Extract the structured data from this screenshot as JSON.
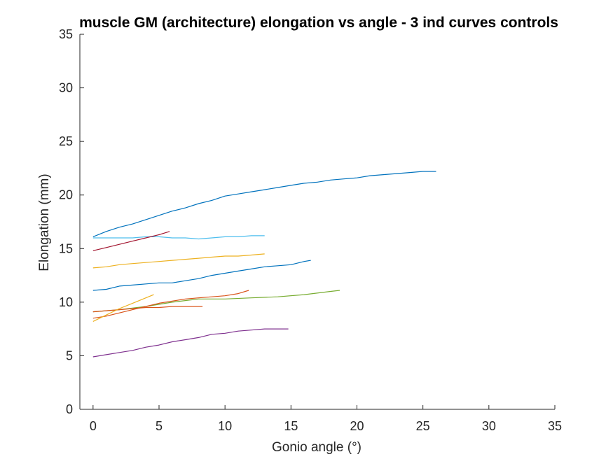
{
  "chart_data": {
    "type": "line",
    "title": "muscle GM (architecture) elongation vs angle - 3 ind curves controls",
    "xlabel": "Gonio angle (°)",
    "ylabel": "Elongation (mm)",
    "xlim": [
      -1,
      35
    ],
    "ylim": [
      0,
      35
    ],
    "xticks": [
      0,
      5,
      10,
      15,
      20,
      25,
      30,
      35
    ],
    "yticks": [
      0,
      5,
      10,
      15,
      20,
      25,
      30,
      35
    ],
    "xtick_labels": [
      "0",
      "5",
      "10",
      "15",
      "20",
      "25",
      "30",
      "35"
    ],
    "ytick_labels": [
      "0",
      "5",
      "10",
      "15",
      "20",
      "25",
      "30",
      "35"
    ],
    "grid": false,
    "series": [
      {
        "color": "#0072BD",
        "x": [
          0,
          1,
          2,
          3,
          4,
          5,
          6,
          7,
          8,
          9,
          10,
          11,
          12,
          13,
          14,
          15,
          16,
          17,
          18,
          19,
          20,
          21,
          22,
          23,
          24,
          25,
          26
        ],
        "y": [
          16.1,
          16.6,
          17.0,
          17.3,
          17.7,
          18.1,
          18.5,
          18.8,
          19.2,
          19.5,
          19.9,
          20.1,
          20.3,
          20.5,
          20.7,
          20.9,
          21.1,
          21.2,
          21.4,
          21.5,
          21.6,
          21.8,
          21.9,
          22.0,
          22.1,
          22.2,
          22.2
        ]
      },
      {
        "color": "#4DBEEE",
        "x": [
          0,
          1,
          2,
          3,
          4,
          5,
          6,
          7,
          8,
          9,
          10,
          11,
          12,
          13
        ],
        "y": [
          16.0,
          16.0,
          16.0,
          16.0,
          16.1,
          16.1,
          16.0,
          16.0,
          15.9,
          16.0,
          16.1,
          16.1,
          16.2,
          16.2
        ]
      },
      {
        "color": "#A2142F",
        "x": [
          0,
          1,
          2,
          3,
          4,
          5,
          5.8
        ],
        "y": [
          14.8,
          15.1,
          15.4,
          15.7,
          16.0,
          16.3,
          16.6
        ]
      },
      {
        "color": "#EDB120",
        "x": [
          0,
          1,
          2,
          3,
          4,
          5,
          6,
          7,
          8,
          9,
          10,
          11,
          12,
          13
        ],
        "y": [
          13.2,
          13.3,
          13.5,
          13.6,
          13.7,
          13.8,
          13.9,
          14.0,
          14.1,
          14.2,
          14.3,
          14.3,
          14.4,
          14.5
        ]
      },
      {
        "color": "#0072BD",
        "x": [
          0,
          1,
          2,
          3,
          4,
          5,
          6,
          7,
          8,
          9,
          10,
          11,
          12,
          13,
          14,
          15,
          16,
          16.5
        ],
        "y": [
          11.1,
          11.2,
          11.5,
          11.6,
          11.7,
          11.8,
          11.8,
          12.0,
          12.2,
          12.5,
          12.7,
          12.9,
          13.1,
          13.3,
          13.4,
          13.5,
          13.8,
          13.9
        ]
      },
      {
        "color": "#77AC30",
        "x": [
          0,
          2,
          4,
          6,
          8,
          10,
          12,
          14,
          16,
          18,
          18.7
        ],
        "y": [
          9.1,
          9.3,
          9.6,
          10.0,
          10.3,
          10.3,
          10.4,
          10.5,
          10.7,
          11.0,
          11.1
        ]
      },
      {
        "color": "#D95319",
        "x": [
          0,
          1,
          2,
          3,
          4,
          5,
          6,
          7,
          8,
          9,
          10,
          11,
          11.8
        ],
        "y": [
          8.5,
          8.7,
          9.0,
          9.3,
          9.6,
          9.9,
          10.1,
          10.3,
          10.4,
          10.5,
          10.6,
          10.8,
          11.1
        ]
      },
      {
        "color": "#D95319",
        "x": [
          0,
          1,
          2,
          3,
          4,
          5,
          6,
          7,
          8,
          8.3
        ],
        "y": [
          9.1,
          9.2,
          9.3,
          9.4,
          9.5,
          9.5,
          9.6,
          9.6,
          9.6,
          9.6
        ]
      },
      {
        "color": "#EDB120",
        "x": [
          0,
          1,
          2,
          3,
          4,
          4.6
        ],
        "y": [
          8.2,
          8.8,
          9.4,
          9.9,
          10.4,
          10.7
        ]
      },
      {
        "color": "#7E2F8E",
        "x": [
          0,
          1,
          2,
          3,
          4,
          5,
          6,
          7,
          8,
          9,
          10,
          11,
          12,
          13,
          14,
          14.8
        ],
        "y": [
          4.9,
          5.1,
          5.3,
          5.5,
          5.8,
          6.0,
          6.3,
          6.5,
          6.7,
          7.0,
          7.1,
          7.3,
          7.4,
          7.5,
          7.5,
          7.5
        ]
      }
    ]
  }
}
